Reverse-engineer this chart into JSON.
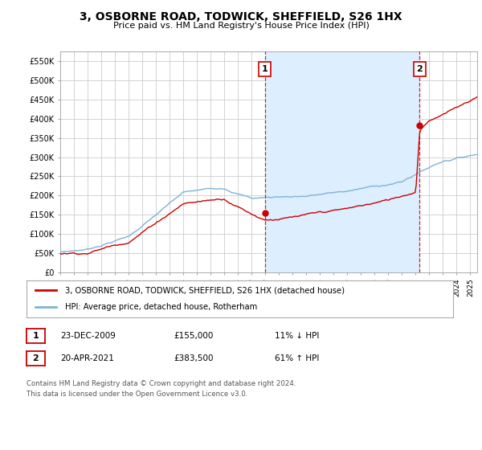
{
  "title": "3, OSBORNE ROAD, TODWICK, SHEFFIELD, S26 1HX",
  "subtitle": "Price paid vs. HM Land Registry's House Price Index (HPI)",
  "red_label": "3, OSBORNE ROAD, TODWICK, SHEFFIELD, S26 1HX (detached house)",
  "blue_label": "HPI: Average price, detached house, Rotherham",
  "transaction1_date": "23-DEC-2009",
  "transaction1_price": 155000,
  "transaction1_pct": "11% ↓ HPI",
  "transaction2_date": "20-APR-2021",
  "transaction2_price": 383500,
  "transaction2_pct": "61% ↑ HPI",
  "footnote": "Contains HM Land Registry data © Crown copyright and database right 2024.\nThis data is licensed under the Open Government Licence v3.0.",
  "ylim": [
    0,
    575000
  ],
  "yticks": [
    0,
    50000,
    100000,
    150000,
    200000,
    250000,
    300000,
    350000,
    400000,
    450000,
    500000,
    550000
  ],
  "background_color": "#ffffff",
  "grid_color": "#cccccc",
  "red_color": "#cc0000",
  "blue_color": "#7fb3d3",
  "fill_color": "#ddeeff",
  "vline_color": "#cc0000",
  "annotation_box_edge": "#cc0000",
  "t1_x": 2009.97,
  "t1_y": 155000,
  "t2_x": 2021.29,
  "t2_y": 383500,
  "xlim_left": 1995.0,
  "xlim_right": 2025.5
}
